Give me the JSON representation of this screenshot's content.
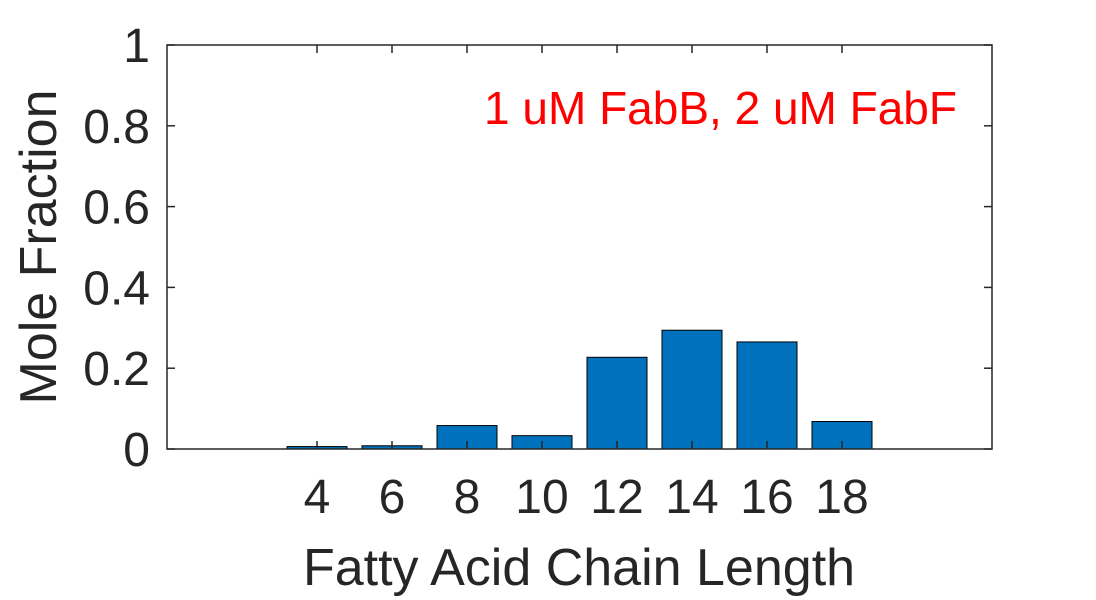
{
  "chart_data": {
    "type": "bar",
    "categories": [
      "4",
      "6",
      "8",
      "10",
      "12",
      "14",
      "16",
      "18"
    ],
    "x": [
      4,
      6,
      8,
      10,
      12,
      14,
      16,
      18
    ],
    "values": [
      0.006,
      0.008,
      0.058,
      0.033,
      0.227,
      0.294,
      0.265,
      0.068
    ],
    "xlabel": "Fatty Acid Chain Length",
    "ylabel": "Mole Fraction",
    "xlim": [
      0,
      22
    ],
    "ylim": [
      0,
      1
    ],
    "yticks": [
      0,
      0.2,
      0.4,
      0.6,
      0.8,
      1
    ],
    "ytick_labels": [
      "0",
      "0.2",
      "0.4",
      "0.6",
      "0.8",
      "1"
    ],
    "annotation": "1 uM FabB, 2 uM FabF",
    "grid": false,
    "legend": "none",
    "colors": {
      "bar": "#0072BD",
      "annotation": "#FF0000",
      "axis": "#262626"
    }
  }
}
